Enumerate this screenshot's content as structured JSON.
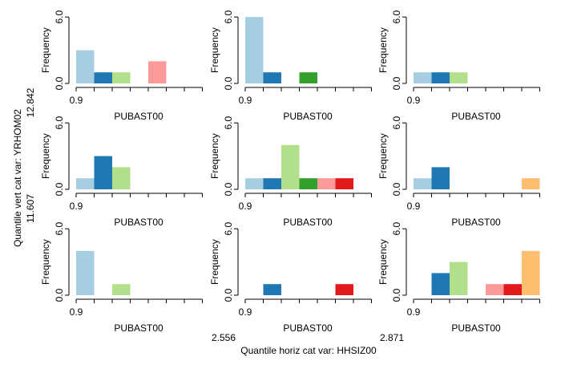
{
  "chart_data": {
    "type": "bar",
    "layout": "3x3 small multiples",
    "panel_xlabel": "PUBAST00",
    "panel_ylabel": "Frequency",
    "x_start_tick": "0.9",
    "y_ticks": [
      "0.0",
      "6.0"
    ],
    "ylim": [
      0,
      6
    ],
    "bin_colors": [
      "#a6cee3",
      "#1f78b4",
      "#b2df8a",
      "#33a02c",
      "#fb9a99",
      "#e31a1c",
      "#fdbf6f"
    ],
    "outer_xlabel": "Quantile horiz cat var: HHSIZ00",
    "outer_ylabel": "Quantile vert cat var: YRHOM02",
    "col_breaks": [
      "2.556",
      "2.871"
    ],
    "row_breaks": [
      "12.842",
      "11.607"
    ],
    "panels": [
      {
        "row": 0,
        "col": 0,
        "values": [
          3,
          1,
          1,
          0,
          2,
          0,
          0
        ]
      },
      {
        "row": 0,
        "col": 1,
        "values": [
          6,
          1,
          0,
          1,
          0,
          0,
          0
        ]
      },
      {
        "row": 0,
        "col": 2,
        "values": [
          1,
          1,
          1,
          0,
          0,
          0,
          0
        ]
      },
      {
        "row": 1,
        "col": 0,
        "values": [
          1,
          3,
          2,
          0,
          0,
          0,
          0
        ]
      },
      {
        "row": 1,
        "col": 1,
        "values": [
          1,
          1,
          4,
          1,
          1,
          1,
          0
        ]
      },
      {
        "row": 1,
        "col": 2,
        "values": [
          1,
          2,
          0,
          0,
          0,
          0,
          1
        ]
      },
      {
        "row": 2,
        "col": 0,
        "values": [
          4,
          0,
          1,
          0,
          0,
          0,
          0
        ]
      },
      {
        "row": 2,
        "col": 1,
        "values": [
          0,
          1,
          0,
          0,
          0,
          1,
          0
        ]
      },
      {
        "row": 2,
        "col": 2,
        "values": [
          0,
          2,
          3,
          0,
          1,
          1,
          4
        ]
      }
    ]
  }
}
